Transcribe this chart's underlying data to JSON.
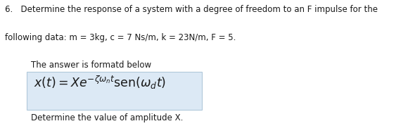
{
  "line1": "6.   Determine the response of a system with a degree of freedom to an F impulse for the",
  "line2": "following data: m = 3kg, c = 7 Ns/m, k = 23N/m, F = 5.",
  "line3": "The answer is formatd below",
  "formula_text": "$x(t) = Xe^{-\\zeta\\omega_n t}\\mathrm{sen}(\\omega_d t)$",
  "line4": "Determine the value of amplitude X.",
  "bg_color": "#ffffff",
  "box_facecolor": "#dce9f5",
  "box_edgecolor": "#b0c8da",
  "text_color": "#1a1a1a",
  "font_size_main": 8.5,
  "font_size_formula": 12.5,
  "fig_width": 5.8,
  "fig_height": 1.79,
  "dpi": 100
}
